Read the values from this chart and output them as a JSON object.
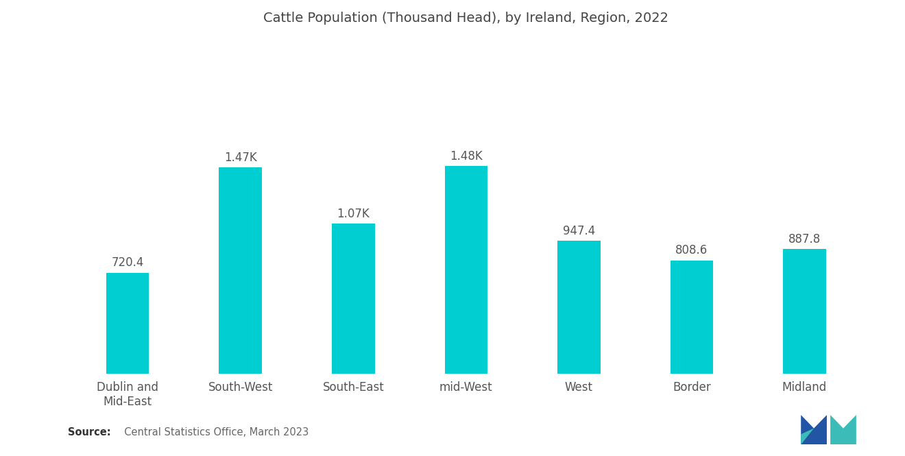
{
  "title": "Cattle Population (Thousand Head), by Ireland, Region, 2022",
  "categories": [
    "Dublin and\nMid-East",
    "South-West",
    "South-East",
    "mid-West",
    "West",
    "Border",
    "Midland"
  ],
  "values": [
    720.4,
    1470.0,
    1070.0,
    1480.0,
    947.4,
    808.6,
    887.8
  ],
  "labels": [
    "720.4",
    "1.47K",
    "1.07K",
    "1.48K",
    "947.4",
    "808.6",
    "887.8"
  ],
  "bar_color": "#00CED1",
  "background_color": "#ffffff",
  "title_fontsize": 14,
  "label_fontsize": 12,
  "tick_fontsize": 12,
  "source_bold": "Source:",
  "source_rest": "  Central Statistics Office, March 2023",
  "ylim": [
    0,
    2400
  ],
  "bar_width": 0.38,
  "logo_left_color": "#2255a4",
  "logo_right_color": "#3bbcb8"
}
